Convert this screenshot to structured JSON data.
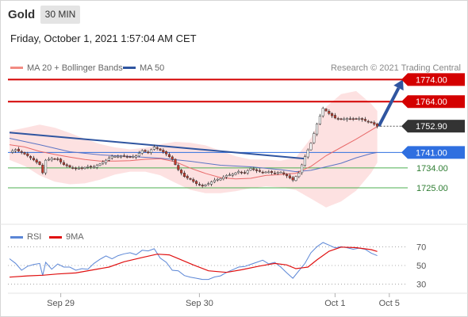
{
  "header": {
    "title": "Gold",
    "timeframe": "30 MIN"
  },
  "timestamp": "Friday, October 1, 2021 1:57:04 AM CET",
  "legend": {
    "ma_bb": "MA 20 + Bollinger Bands",
    "ma50": "MA 50",
    "credit": "Research © 2021 Trading Central",
    "rsi": "RSI",
    "ma9": "9MA"
  },
  "colors": {
    "resistance": "#d40000",
    "support": "#4caf50",
    "pivot": "#2f6fe0",
    "bollinger_fill": "#fddcdc",
    "ma20": "#e86a6a",
    "ma50": "#5b74c4",
    "trendline": "#2f55a0",
    "rsi": "#5b86d6",
    "ma9": "#e01010",
    "candle_up": "#ffffff",
    "candle_down": "#c0392b"
  },
  "chart_data": [
    {
      "type": "candlestick",
      "instrument": "Gold",
      "timeframe": "30 MIN",
      "y_axis_range": [
        1711,
        1777
      ],
      "x_ticks": [
        "Sep 29",
        "Sep 30",
        "Oct 1",
        "Oct 5"
      ],
      "last_price": "1752.90",
      "levels": [
        {
          "value": "1774.00",
          "kind": "resistance",
          "style": "box"
        },
        {
          "value": "1764.00",
          "kind": "resistance",
          "style": "box"
        },
        {
          "value": "1741.00",
          "kind": "pivot",
          "style": "box"
        },
        {
          "value": "1734.00",
          "kind": "support",
          "style": "text"
        },
        {
          "value": "1725.00",
          "kind": "support",
          "style": "text"
        }
      ],
      "close_path": [
        [
          0,
          1741.2
        ],
        [
          2,
          1742.3
        ],
        [
          4,
          1741.0
        ],
        [
          6,
          1739.5
        ],
        [
          8,
          1737.6
        ],
        [
          10,
          1735.5
        ],
        [
          11,
          1731.8
        ],
        [
          12,
          1737.5
        ],
        [
          14,
          1738.3
        ],
        [
          16,
          1737.8
        ],
        [
          18,
          1735.5
        ],
        [
          20,
          1734.4
        ],
        [
          22,
          1733.8
        ],
        [
          24,
          1733.9
        ],
        [
          26,
          1734.6
        ],
        [
          28,
          1734.4
        ],
        [
          30,
          1735.8
        ],
        [
          32,
          1737.5
        ],
        [
          34,
          1739.3
        ],
        [
          36,
          1739.2
        ],
        [
          38,
          1739.4
        ],
        [
          40,
          1738.9
        ],
        [
          42,
          1739.5
        ],
        [
          44,
          1741.8
        ],
        [
          46,
          1741.0
        ],
        [
          48,
          1743.5
        ],
        [
          50,
          1742.0
        ],
        [
          52,
          1740.3
        ],
        [
          54,
          1737.8
        ],
        [
          56,
          1733.2
        ],
        [
          58,
          1730.1
        ],
        [
          60,
          1728.8
        ],
        [
          62,
          1726.9
        ],
        [
          64,
          1725.8
        ],
        [
          66,
          1726.9
        ],
        [
          68,
          1728.5
        ],
        [
          70,
          1729.2
        ],
        [
          72,
          1730.6
        ],
        [
          74,
          1731.1
        ],
        [
          76,
          1732.4
        ],
        [
          78,
          1731.7
        ],
        [
          80,
          1733.8
        ],
        [
          82,
          1732.7
        ],
        [
          84,
          1732.1
        ],
        [
          86,
          1732.2
        ],
        [
          88,
          1731.6
        ],
        [
          90,
          1732.1
        ],
        [
          92,
          1730.4
        ],
        [
          94,
          1728.5
        ],
        [
          96,
          1731.7
        ],
        [
          98,
          1739.1
        ],
        [
          100,
          1745.2
        ],
        [
          102,
          1753.9
        ],
        [
          104,
          1761.0
        ],
        [
          106,
          1758.6
        ],
        [
          108,
          1756.6
        ],
        [
          110,
          1756.0
        ],
        [
          112,
          1756.4
        ],
        [
          114,
          1756.1
        ],
        [
          116,
          1756.4
        ],
        [
          118,
          1755.4
        ],
        [
          120,
          1754.5
        ],
        [
          122,
          1752.9
        ]
      ],
      "ma20_path": [
        [
          0,
          1744.5
        ],
        [
          5,
          1743.5
        ],
        [
          10,
          1741.5
        ],
        [
          15,
          1740.1
        ],
        [
          20,
          1738.9
        ],
        [
          25,
          1737.8
        ],
        [
          30,
          1737.1
        ],
        [
          35,
          1737.1
        ],
        [
          40,
          1737.3
        ],
        [
          45,
          1737.9
        ],
        [
          50,
          1738.2
        ],
        [
          55,
          1736.8
        ],
        [
          60,
          1733.9
        ],
        [
          65,
          1731.5
        ],
        [
          70,
          1729.6
        ],
        [
          75,
          1729.0
        ],
        [
          80,
          1729.3
        ],
        [
          85,
          1730.6
        ],
        [
          90,
          1731.0
        ],
        [
          95,
          1731.6
        ],
        [
          100,
          1734.7
        ],
        [
          105,
          1739.5
        ],
        [
          110,
          1743.3
        ],
        [
          115,
          1747.0
        ],
        [
          120,
          1751.1
        ],
        [
          122,
          1752.7
        ]
      ],
      "ma50_path": [
        [
          0,
          1747.4
        ],
        [
          10,
          1744.5
        ],
        [
          20,
          1741.3
        ],
        [
          30,
          1739.9
        ],
        [
          40,
          1739.2
        ],
        [
          50,
          1738.4
        ],
        [
          60,
          1737.0
        ],
        [
          70,
          1735.2
        ],
        [
          80,
          1734.5
        ],
        [
          90,
          1733.2
        ],
        [
          95,
          1732.3
        ],
        [
          100,
          1732.9
        ],
        [
          105,
          1734.5
        ],
        [
          110,
          1736.1
        ],
        [
          115,
          1738.6
        ],
        [
          120,
          1740.5
        ],
        [
          122,
          1741.0
        ]
      ],
      "bb_upper_path": [
        [
          0,
          1750.7
        ],
        [
          5,
          1752.1
        ],
        [
          10,
          1753.6
        ],
        [
          15,
          1752.2
        ],
        [
          20,
          1749.8
        ],
        [
          25,
          1747.2
        ],
        [
          30,
          1744.8
        ],
        [
          35,
          1743.3
        ],
        [
          40,
          1742.4
        ],
        [
          45,
          1743.1
        ],
        [
          50,
          1744.7
        ],
        [
          55,
          1745.8
        ],
        [
          60,
          1745.4
        ],
        [
          65,
          1744.2
        ],
        [
          70,
          1741.8
        ],
        [
          75,
          1739.3
        ],
        [
          80,
          1737.8
        ],
        [
          85,
          1737.8
        ],
        [
          90,
          1737.3
        ],
        [
          95,
          1738.7
        ],
        [
          100,
          1747.5
        ],
        [
          105,
          1761.6
        ],
        [
          110,
          1767.4
        ],
        [
          115,
          1768.8
        ],
        [
          120,
          1763.0
        ],
        [
          122,
          1759.8
        ]
      ],
      "bb_lower_path": [
        [
          0,
          1737.6
        ],
        [
          5,
          1734.9
        ],
        [
          10,
          1730.6
        ],
        [
          15,
          1727.8
        ],
        [
          20,
          1726.6
        ],
        [
          25,
          1727.0
        ],
        [
          30,
          1728.7
        ],
        [
          35,
          1731.0
        ],
        [
          40,
          1732.3
        ],
        [
          45,
          1732.3
        ],
        [
          50,
          1730.7
        ],
        [
          55,
          1727.3
        ],
        [
          60,
          1724.1
        ],
        [
          65,
          1722.6
        ],
        [
          70,
          1722.6
        ],
        [
          75,
          1723.5
        ],
        [
          80,
          1724.8
        ],
        [
          85,
          1725.6
        ],
        [
          90,
          1725.2
        ],
        [
          95,
          1724.0
        ],
        [
          100,
          1720.1
        ],
        [
          105,
          1716.1
        ],
        [
          110,
          1718.8
        ],
        [
          115,
          1723.7
        ],
        [
          120,
          1731.8
        ],
        [
          122,
          1736.4
        ]
      ],
      "trendline": [
        [
          0,
          1750.0
        ],
        [
          98,
          1738.2
        ]
      ],
      "projection": {
        "from": [
          122,
          1752.9
        ],
        "to": [
          130,
          1774.0
        ]
      },
      "notes": "Horizontal positions are time indices (30-minute bars); prices estimated from the price scale."
    },
    {
      "type": "line",
      "name": "RSI",
      "y_ticks": [
        70,
        50,
        30
      ],
      "y_axis_range": [
        22,
        78
      ],
      "series": [
        {
          "name": "RSI",
          "points": [
            [
              0,
              57.2
            ],
            [
              2,
              52.3
            ],
            [
              4,
              44.9
            ],
            [
              6,
              49.2
            ],
            [
              8,
              51.0
            ],
            [
              10,
              52.2
            ],
            [
              11,
              39.2
            ],
            [
              12,
              53.4
            ],
            [
              14,
              46.0
            ],
            [
              16,
              51.6
            ],
            [
              18,
              48.3
            ],
            [
              20,
              48.3
            ],
            [
              22,
              44.9
            ],
            [
              24,
              46.6
            ],
            [
              26,
              46.0
            ],
            [
              28,
              52.2
            ],
            [
              30,
              56.6
            ],
            [
              32,
              60.3
            ],
            [
              34,
              57.1
            ],
            [
              36,
              60.5
            ],
            [
              38,
              62.5
            ],
            [
              40,
              63.7
            ],
            [
              42,
              61.5
            ],
            [
              44,
              66.3
            ],
            [
              46,
              65.6
            ],
            [
              48,
              67.9
            ],
            [
              50,
              58.0
            ],
            [
              52,
              53.4
            ],
            [
              54,
              44.9
            ],
            [
              56,
              44.3
            ],
            [
              58,
              39.2
            ],
            [
              60,
              37.5
            ],
            [
              62,
              36.3
            ],
            [
              64,
              35.1
            ],
            [
              66,
              35.1
            ],
            [
              68,
              37.7
            ],
            [
              70,
              38.9
            ],
            [
              72,
              42.6
            ],
            [
              74,
              45.4
            ],
            [
              76,
              48.3
            ],
            [
              78,
              48.9
            ],
            [
              80,
              51.2
            ],
            [
              82,
              53.4
            ],
            [
              84,
              55.7
            ],
            [
              86,
              51.7
            ],
            [
              88,
              53.4
            ],
            [
              90,
              48.3
            ],
            [
              92,
              42.0
            ],
            [
              94,
              36.3
            ],
            [
              96,
              44.3
            ],
            [
              98,
              52.2
            ],
            [
              100,
              63.7
            ],
            [
              102,
              70.1
            ],
            [
              104,
              74.6
            ],
            [
              106,
              71.8
            ],
            [
              108,
              68.9
            ],
            [
              110,
              70.1
            ],
            [
              112,
              69.0
            ],
            [
              114,
              67.4
            ],
            [
              116,
              68.6
            ],
            [
              118,
              67.3
            ],
            [
              120,
              63.2
            ],
            [
              122,
              60.5
            ]
          ]
        },
        {
          "name": "9MA",
          "points": [
            [
              0,
              37.5
            ],
            [
              6,
              38.9
            ],
            [
              11,
              39.6
            ],
            [
              16,
              40.9
            ],
            [
              22,
              42.0
            ],
            [
              27,
              44.9
            ],
            [
              33,
              48.3
            ],
            [
              38,
              54.0
            ],
            [
              44,
              58.6
            ],
            [
              49,
              62.1
            ],
            [
              53,
              61.4
            ],
            [
              56,
              57.4
            ],
            [
              61,
              50.6
            ],
            [
              66,
              44.3
            ],
            [
              72,
              42.6
            ],
            [
              77,
              45.4
            ],
            [
              83,
              49.4
            ],
            [
              88,
              52.2
            ],
            [
              92,
              50.6
            ],
            [
              95,
              46.6
            ],
            [
              99,
              48.3
            ],
            [
              102,
              56.0
            ],
            [
              106,
              65.3
            ],
            [
              110,
              69.7
            ],
            [
              115,
              69.1
            ],
            [
              120,
              67.0
            ],
            [
              122,
              65.0
            ]
          ]
        }
      ]
    }
  ]
}
